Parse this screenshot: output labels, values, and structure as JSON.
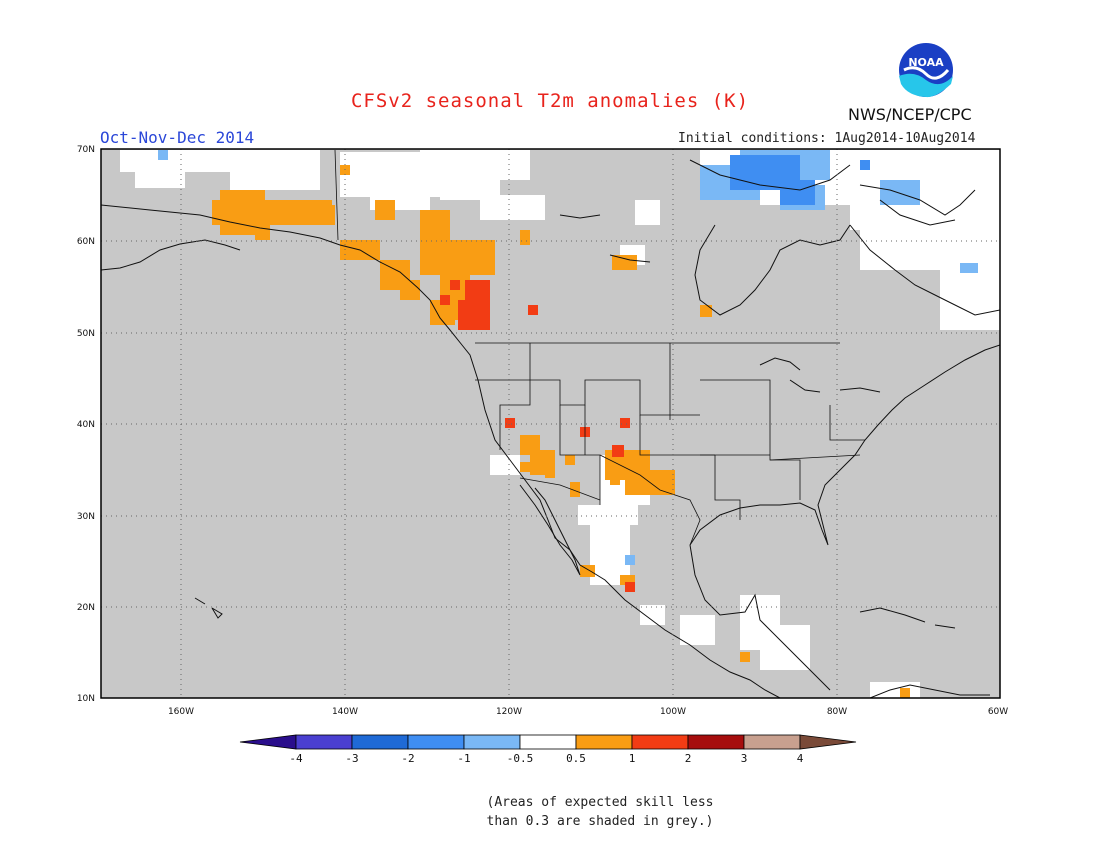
{
  "header": {
    "title": "CFSv2 seasonal T2m anomalies (K)",
    "season": "Oct-Nov-Dec 2014",
    "initial_conditions": "Initial conditions: 1Aug2014-10Aug2014",
    "agency": "NWS/NCEP/CPC",
    "logo_text": "NOAA"
  },
  "map": {
    "lat_labels": [
      "70N",
      "60N",
      "50N",
      "40N",
      "30N",
      "20N",
      "10N"
    ],
    "lon_labels": [
      "160W",
      "140W",
      "120W",
      "100W",
      "80W",
      "60W"
    ],
    "colors": {
      "land_grey": "#c8c8c8",
      "ocean_grey": "#c8c8c8",
      "coast": "#111111",
      "grid": "#666666"
    }
  },
  "colorbar": {
    "labels": [
      "-4",
      "-3",
      "-2",
      "-1",
      "-0.5",
      "0.5",
      "1",
      "2",
      "3",
      "4"
    ],
    "colors": [
      "#2a0e8c",
      "#4a3fd0",
      "#1f6ad6",
      "#3f8ef2",
      "#7ab8f5",
      "#ffffff",
      "#f99d14",
      "#f23c14",
      "#a60d0d",
      "#c8a08f",
      "#7a4a38"
    ]
  },
  "footnote": {
    "line1": "(Areas of expected skill less",
    "line2": "than 0.3 are shaded in grey.)"
  }
}
